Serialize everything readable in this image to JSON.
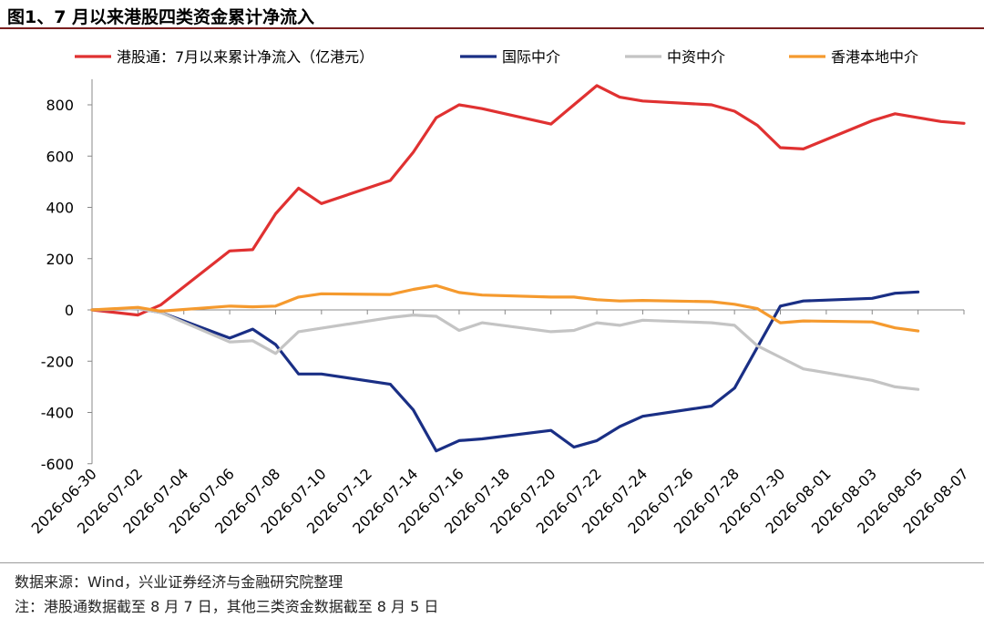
{
  "figure": {
    "title": "图1、7 月以来港股四类资金累计净流入",
    "source": "数据来源：Wind，兴业证券经济与金融研究院整理",
    "note": "注：港股通数据截至 8 月 7 日，其他三类资金数据截至 8 月 5 日"
  },
  "chart_data": {
    "type": "line",
    "title": "",
    "xlabel": "",
    "ylabel": "",
    "ylim": [
      -600,
      900
    ],
    "yticks": [
      -600,
      -400,
      -200,
      0,
      200,
      400,
      600,
      800
    ],
    "grid": false,
    "legend_position": "top",
    "x_tick_labels": [
      "2026-06-30",
      "2026-07-02",
      "2026-07-04",
      "2026-07-06",
      "2026-07-08",
      "2026-07-10",
      "2026-07-12",
      "2026-07-14",
      "2026-07-16",
      "2026-07-18",
      "2026-07-20",
      "2026-07-22",
      "2026-07-24",
      "2026-07-26",
      "2026-07-28",
      "2026-07-30",
      "2026-08-01",
      "2026-08-03",
      "2026-08-05",
      "2026-08-07"
    ],
    "series": [
      {
        "name": "港股通：7月以来累计净流入（亿港元）",
        "color": "#e03131",
        "points": [
          [
            "2026-06-30",
            0
          ],
          [
            "2026-07-02",
            -20
          ],
          [
            "2026-07-03",
            20
          ],
          [
            "2026-07-06",
            230
          ],
          [
            "2026-07-07",
            235
          ],
          [
            "2026-07-08",
            375
          ],
          [
            "2026-07-09",
            475
          ],
          [
            "2026-07-10",
            415
          ],
          [
            "2026-07-13",
            505
          ],
          [
            "2026-07-14",
            615
          ],
          [
            "2026-07-15",
            750
          ],
          [
            "2026-07-16",
            800
          ],
          [
            "2026-07-17",
            785
          ],
          [
            "2026-07-20",
            725
          ],
          [
            "2026-07-22",
            875
          ],
          [
            "2026-07-23",
            830
          ],
          [
            "2026-07-24",
            815
          ],
          [
            "2026-07-27",
            800
          ],
          [
            "2026-07-28",
            775
          ],
          [
            "2026-07-29",
            720
          ],
          [
            "2026-07-30",
            633
          ],
          [
            "2026-07-31",
            628
          ],
          [
            "2026-08-03",
            738
          ],
          [
            "2026-08-04",
            765
          ],
          [
            "2026-08-05",
            750
          ],
          [
            "2026-08-06",
            735
          ],
          [
            "2026-08-07",
            728
          ]
        ]
      },
      {
        "name": "国际中介",
        "color": "#1a2f85",
        "points": [
          [
            "2026-06-30",
            0
          ],
          [
            "2026-07-02",
            5
          ],
          [
            "2026-07-03",
            -10
          ],
          [
            "2026-07-06",
            -110
          ],
          [
            "2026-07-07",
            -75
          ],
          [
            "2026-07-08",
            -135
          ],
          [
            "2026-07-09",
            -250
          ],
          [
            "2026-07-10",
            -250
          ],
          [
            "2026-07-13",
            -290
          ],
          [
            "2026-07-14",
            -390
          ],
          [
            "2026-07-15",
            -550
          ],
          [
            "2026-07-16",
            -510
          ],
          [
            "2026-07-17",
            -503
          ],
          [
            "2026-07-20",
            -470
          ],
          [
            "2026-07-21",
            -535
          ],
          [
            "2026-07-22",
            -510
          ],
          [
            "2026-07-23",
            -455
          ],
          [
            "2026-07-24",
            -415
          ],
          [
            "2026-07-27",
            -375
          ],
          [
            "2026-07-28",
            -305
          ],
          [
            "2026-07-30",
            15
          ],
          [
            "2026-07-31",
            35
          ],
          [
            "2026-08-03",
            45
          ],
          [
            "2026-08-04",
            65
          ],
          [
            "2026-08-05",
            70
          ]
        ]
      },
      {
        "name": "中资中介",
        "color": "#c4c4c4",
        "points": [
          [
            "2026-06-30",
            0
          ],
          [
            "2026-07-02",
            5
          ],
          [
            "2026-07-03",
            -10
          ],
          [
            "2026-07-06",
            -125
          ],
          [
            "2026-07-07",
            -120
          ],
          [
            "2026-07-08",
            -170
          ],
          [
            "2026-07-09",
            -85
          ],
          [
            "2026-07-13",
            -30
          ],
          [
            "2026-07-14",
            -20
          ],
          [
            "2026-07-15",
            -25
          ],
          [
            "2026-07-16",
            -80
          ],
          [
            "2026-07-17",
            -50
          ],
          [
            "2026-07-20",
            -85
          ],
          [
            "2026-07-21",
            -80
          ],
          [
            "2026-07-22",
            -50
          ],
          [
            "2026-07-23",
            -60
          ],
          [
            "2026-07-24",
            -40
          ],
          [
            "2026-07-27",
            -50
          ],
          [
            "2026-07-28",
            -60
          ],
          [
            "2026-07-29",
            -140
          ],
          [
            "2026-07-30",
            -185
          ],
          [
            "2026-07-31",
            -230
          ],
          [
            "2026-08-03",
            -275
          ],
          [
            "2026-08-04",
            -300
          ],
          [
            "2026-08-05",
            -310
          ]
        ]
      },
      {
        "name": "香港本地中介",
        "color": "#f59a2e",
        "points": [
          [
            "2026-06-30",
            0
          ],
          [
            "2026-07-02",
            10
          ],
          [
            "2026-07-03",
            -5
          ],
          [
            "2026-07-06",
            15
          ],
          [
            "2026-07-07",
            12
          ],
          [
            "2026-07-08",
            15
          ],
          [
            "2026-07-09",
            50
          ],
          [
            "2026-07-10",
            63
          ],
          [
            "2026-07-13",
            60
          ],
          [
            "2026-07-14",
            80
          ],
          [
            "2026-07-15",
            95
          ],
          [
            "2026-07-16",
            68
          ],
          [
            "2026-07-17",
            58
          ],
          [
            "2026-07-20",
            50
          ],
          [
            "2026-07-21",
            50
          ],
          [
            "2026-07-22",
            40
          ],
          [
            "2026-07-23",
            35
          ],
          [
            "2026-07-24",
            37
          ],
          [
            "2026-07-27",
            32
          ],
          [
            "2026-07-28",
            22
          ],
          [
            "2026-07-29",
            5
          ],
          [
            "2026-07-30",
            -50
          ],
          [
            "2026-07-31",
            -43
          ],
          [
            "2026-08-03",
            -47
          ],
          [
            "2026-08-04",
            -70
          ],
          [
            "2026-08-05",
            -82
          ]
        ]
      }
    ]
  }
}
